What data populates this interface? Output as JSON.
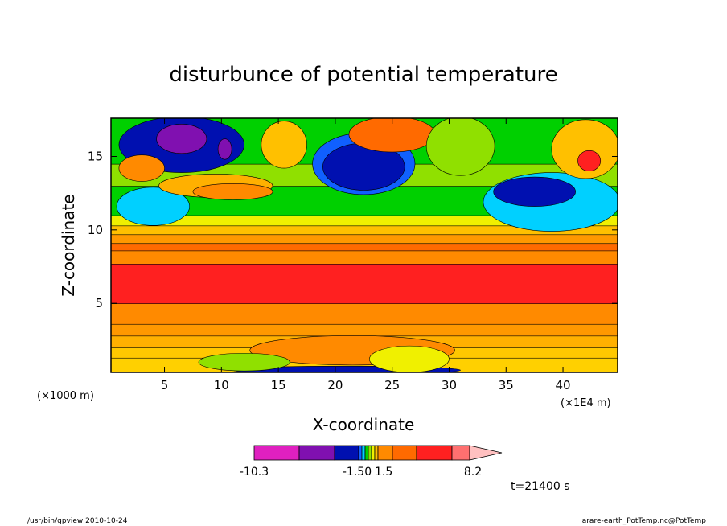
{
  "chart_data": {
    "type": "heatmap",
    "title": "disturbunce of potential temperature",
    "xlabel": "X-coordinate",
    "ylabel": "Z-coordinate",
    "x_unit": "(×1E4 m)",
    "y_unit": "(×1000 m)",
    "xlim": [
      0.3,
      44.8
    ],
    "ylim": [
      0.3,
      17.6
    ],
    "x_ticks": [
      5,
      10,
      15,
      20,
      25,
      30,
      35,
      40
    ],
    "y_ticks": [
      5,
      10,
      15
    ],
    "time_label": "t=21400 s",
    "colorbar": {
      "labels": [
        {
          "text": "-10.3",
          "value": -10.3
        },
        {
          "text": "-1.50",
          "value": -1.5
        },
        {
          "text": "1.5",
          "value": 1.5
        },
        {
          "text": "8.2",
          "value": 8.2
        }
      ],
      "colors": [
        "#e020c0",
        "#8010b0",
        "#0010b0",
        "#1060ff",
        "#00d0ff",
        "#00d000",
        "#90e000",
        "#f0f000",
        "#ffc000",
        "#ff8a00",
        "#ff6a00",
        "#ff2020",
        "#ff7070",
        "#ffc0c0"
      ]
    },
    "bands": [
      {
        "z": 0.3,
        "color": "#ffd000"
      },
      {
        "z": 1.3,
        "color": "#ffc800"
      },
      {
        "z": 2.0,
        "color": "#ffb000"
      },
      {
        "z": 2.8,
        "color": "#ff9800"
      },
      {
        "z": 3.6,
        "color": "#ff8a00"
      },
      {
        "z": 5.0,
        "color": "#ff2020"
      },
      {
        "z": 7.7,
        "color": "#ff8a00"
      },
      {
        "z": 8.6,
        "color": "#ff6a00"
      },
      {
        "z": 9.1,
        "color": "#ff9800"
      },
      {
        "z": 9.7,
        "color": "#ffc000"
      },
      {
        "z": 10.3,
        "color": "#f0f000"
      },
      {
        "z": 11.0,
        "color": "#00d000"
      },
      {
        "z": 13.0,
        "color": "#90e000"
      },
      {
        "z": 14.5,
        "color": "#00d000"
      }
    ],
    "blobs": [
      {
        "x": 6.5,
        "z": 15.8,
        "rx": 5.5,
        "rz": 1.9,
        "color": "#0010b0"
      },
      {
        "x": 6.5,
        "z": 16.2,
        "rx": 2.2,
        "rz": 1.0,
        "color": "#8010b0"
      },
      {
        "x": 10.3,
        "z": 15.5,
        "rx": 0.6,
        "rz": 0.7,
        "color": "#8010b0"
      },
      {
        "x": 4.0,
        "z": 11.6,
        "rx": 3.2,
        "rz": 1.3,
        "color": "#00d0ff"
      },
      {
        "x": 3.0,
        "z": 14.2,
        "rx": 2.0,
        "rz": 0.9,
        "color": "#ff8a00"
      },
      {
        "x": 9.5,
        "z": 13.0,
        "rx": 5.0,
        "rz": 0.8,
        "color": "#ffb000"
      },
      {
        "x": 11.0,
        "z": 12.6,
        "rx": 3.5,
        "rz": 0.55,
        "color": "#ff8a00"
      },
      {
        "x": 15.5,
        "z": 15.8,
        "rx": 2.0,
        "rz": 1.6,
        "color": "#ffc000"
      },
      {
        "x": 22.5,
        "z": 14.5,
        "rx": 4.5,
        "rz": 2.1,
        "color": "#1060ff"
      },
      {
        "x": 22.5,
        "z": 14.3,
        "rx": 3.6,
        "rz": 1.6,
        "color": "#0010b0"
      },
      {
        "x": 25.0,
        "z": 16.5,
        "rx": 3.8,
        "rz": 1.2,
        "color": "#ff6a00"
      },
      {
        "x": 31.0,
        "z": 15.7,
        "rx": 3.0,
        "rz": 2.0,
        "color": "#90e000"
      },
      {
        "x": 39.0,
        "z": 11.9,
        "rx": 6.0,
        "rz": 2.0,
        "color": "#00d0ff"
      },
      {
        "x": 37.5,
        "z": 12.6,
        "rx": 3.6,
        "rz": 1.0,
        "color": "#0010b0"
      },
      {
        "x": 42.0,
        "z": 15.5,
        "rx": 3.0,
        "rz": 2.0,
        "color": "#ffc000"
      },
      {
        "x": 42.3,
        "z": 14.7,
        "rx": 1.0,
        "rz": 0.7,
        "color": "#ff2020"
      },
      {
        "x": 21.5,
        "z": 1.8,
        "rx": 9.0,
        "rz": 1.0,
        "color": "#ff8a00"
      },
      {
        "x": 21.0,
        "z": 0.45,
        "rx": 10.0,
        "rz": 0.28,
        "color": "#0010b0"
      },
      {
        "x": 26.5,
        "z": 1.2,
        "rx": 3.5,
        "rz": 0.9,
        "color": "#f0f000"
      },
      {
        "x": 12.0,
        "z": 1.0,
        "rx": 4.0,
        "rz": 0.6,
        "color": "#90e000"
      }
    ]
  },
  "footer": {
    "left": "/usr/bin/gpview  2010-10-24",
    "right": "arare-earth_PotTemp.nc@PotTemp"
  }
}
